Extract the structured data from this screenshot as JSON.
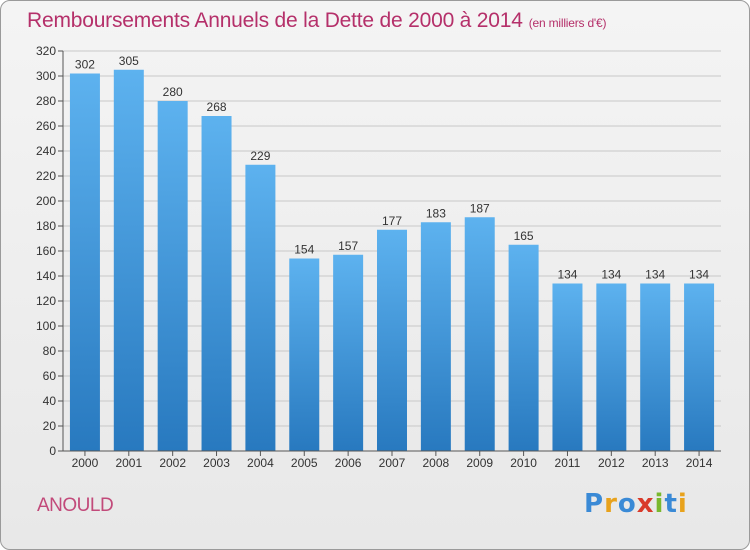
{
  "header": {
    "title": "Remboursements Annuels de la Dette de 2000 à 2014",
    "unit_note": "(en milliers d'€)"
  },
  "footer": {
    "commune": "ANOULD",
    "logo_text": "Proxiti",
    "logo_colors": [
      "#3a8ad6",
      "#e8a21c",
      "#3a8ad6",
      "#d93a2a",
      "#7ab82e",
      "#3a8ad6",
      "#e8a21c"
    ]
  },
  "colors": {
    "bar_top": "#5db2ef",
    "bar_bottom": "#2879bf",
    "grid": "#c8c8c8",
    "title": "#b5306a"
  },
  "chart_data": {
    "type": "bar",
    "title": "Remboursements Annuels de la Dette de 2000 à 2014",
    "subtitle": "(en milliers d'€)",
    "xlabel": "",
    "ylabel": "",
    "categories": [
      "2000",
      "2001",
      "2002",
      "2003",
      "2004",
      "2005",
      "2006",
      "2007",
      "2008",
      "2009",
      "2010",
      "2011",
      "2012",
      "2013",
      "2014"
    ],
    "values": [
      302,
      305,
      280,
      268,
      229,
      154,
      157,
      177,
      183,
      187,
      165,
      134,
      134,
      134,
      134
    ],
    "ylim": [
      0,
      320
    ],
    "ytick_step": 20,
    "grid": true,
    "legend": "none"
  }
}
